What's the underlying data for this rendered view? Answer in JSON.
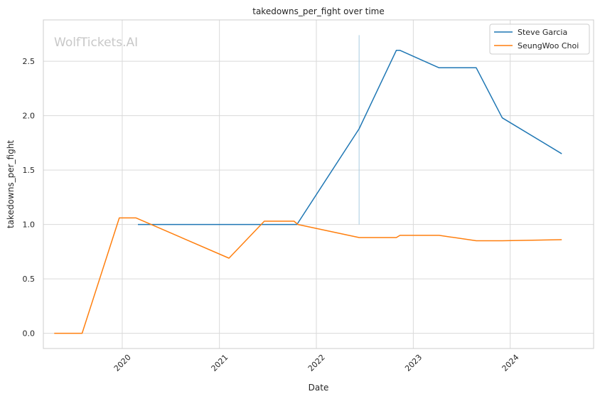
{
  "chart_data": {
    "type": "line",
    "title": "takedowns_per_fight over time",
    "xlabel": "Date",
    "ylabel": "takedowns_per_fight",
    "watermark": "WolfTickets.AI",
    "xlim": [
      "2019-03-10",
      "2024-11-10"
    ],
    "ylim": [
      -0.14,
      2.88
    ],
    "x_ticks": [
      {
        "date": "2020-01-01",
        "label": "2020"
      },
      {
        "date": "2021-01-01",
        "label": "2021"
      },
      {
        "date": "2022-01-01",
        "label": "2022"
      },
      {
        "date": "2023-01-01",
        "label": "2023"
      },
      {
        "date": "2024-01-01",
        "label": "2024"
      }
    ],
    "y_ticks": [
      0.0,
      0.5,
      1.0,
      1.5,
      2.0,
      2.5
    ],
    "y_tick_labels": [
      "0.0",
      "0.5",
      "1.0",
      "1.5",
      "2.0",
      "2.5"
    ],
    "grid": true,
    "legend_position": "top-right",
    "series": [
      {
        "name": "Steve Garcia",
        "color": "#1f77b4",
        "points": [
          [
            "2020-02-29",
            1.0
          ],
          [
            "2021-10-20",
            1.0
          ],
          [
            "2022-06-11",
            1.88
          ],
          [
            "2022-10-29",
            2.6
          ],
          [
            "2022-11-12",
            2.6
          ],
          [
            "2023-04-08",
            2.44
          ],
          [
            "2023-08-26",
            2.44
          ],
          [
            "2023-12-02",
            1.98
          ],
          [
            "2024-07-13",
            1.65
          ]
        ]
      },
      {
        "name": "SeungWoo Choi",
        "color": "#ff7f0e",
        "points": [
          [
            "2019-04-20",
            0.0
          ],
          [
            "2019-08-03",
            0.0
          ],
          [
            "2019-12-21",
            1.06
          ],
          [
            "2020-02-22",
            1.06
          ],
          [
            "2021-02-06",
            0.69
          ],
          [
            "2021-06-19",
            1.03
          ],
          [
            "2021-10-09",
            1.03
          ],
          [
            "2021-10-23",
            1.0
          ],
          [
            "2022-06-11",
            0.88
          ],
          [
            "2022-10-29",
            0.88
          ],
          [
            "2022-11-12",
            0.9
          ],
          [
            "2023-04-08",
            0.9
          ],
          [
            "2023-08-26",
            0.85
          ],
          [
            "2023-12-02",
            0.85
          ],
          [
            "2024-07-13",
            0.86
          ]
        ]
      }
    ],
    "annotation_line": {
      "date": "2022-06-11",
      "y_from": 1.0,
      "y_to": 2.74,
      "color": "#a8cce0"
    }
  }
}
